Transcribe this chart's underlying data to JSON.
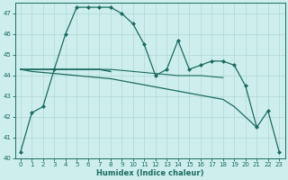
{
  "xlabel": "Humidex (Indice chaleur)",
  "background_color": "#ceeeed",
  "grid_color": "#aed8d6",
  "line_color": "#1a6b60",
  "x_values": [
    0,
    1,
    2,
    3,
    4,
    5,
    6,
    7,
    8,
    9,
    10,
    11,
    12,
    13,
    14,
    15,
    16,
    17,
    18,
    19,
    20,
    21,
    22,
    23
  ],
  "series1": [
    40.3,
    42.2,
    42.5,
    44.3,
    46.0,
    47.3,
    47.3,
    47.3,
    47.3,
    47.0,
    46.5,
    45.5,
    44.0,
    44.3,
    45.7,
    44.3,
    44.5,
    44.7,
    44.7,
    44.5,
    43.5,
    41.5,
    42.3,
    40.3
  ],
  "series2": [
    44.3,
    44.3,
    44.3,
    44.3,
    44.3,
    44.3,
    44.3,
    44.3,
    44.2,
    null,
    null,
    null,
    null,
    null,
    null,
    null,
    null,
    null,
    null,
    null,
    null,
    null,
    null,
    null
  ],
  "series3": [
    44.3,
    44.2,
    44.15,
    44.1,
    44.05,
    44.0,
    43.95,
    43.9,
    43.85,
    43.75,
    43.65,
    43.55,
    43.45,
    43.35,
    43.25,
    43.15,
    43.05,
    42.95,
    42.85,
    42.5,
    42.0,
    41.5,
    null,
    null
  ],
  "series4": [
    44.3,
    44.3,
    44.3,
    44.3,
    44.3,
    44.3,
    44.3,
    44.3,
    44.3,
    44.25,
    44.2,
    44.15,
    44.1,
    44.05,
    44.0,
    44.0,
    44.0,
    43.95,
    43.9,
    null,
    null,
    null,
    null,
    null
  ],
  "ylim": [
    40,
    47.5
  ],
  "xlim": [
    -0.5,
    23.5
  ],
  "yticks": [
    40,
    41,
    42,
    43,
    44,
    45,
    46,
    47
  ],
  "xticks": [
    0,
    1,
    2,
    3,
    4,
    5,
    6,
    7,
    8,
    9,
    10,
    11,
    12,
    13,
    14,
    15,
    16,
    17,
    18,
    19,
    20,
    21,
    22,
    23
  ]
}
